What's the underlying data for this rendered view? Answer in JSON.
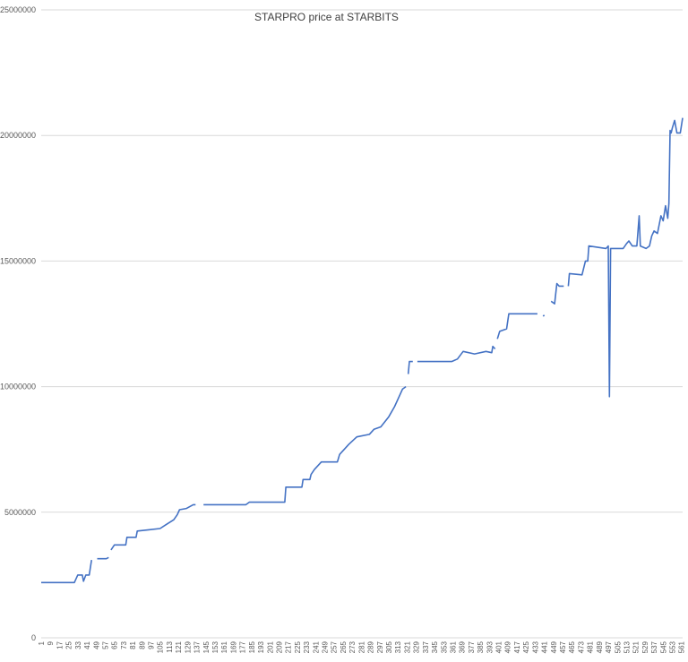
{
  "chart_data": {
    "type": "line",
    "title": "STARPRO price at STARBITS",
    "xlabel": "",
    "ylabel": "",
    "xlim": [
      1,
      562
    ],
    "ylim": [
      0,
      25000000
    ],
    "yticks": [
      0,
      5000000,
      10000000,
      15000000,
      20000000,
      25000000
    ],
    "xticks": [
      1,
      9,
      17,
      25,
      33,
      41,
      49,
      57,
      65,
      73,
      81,
      89,
      97,
      105,
      113,
      121,
      129,
      137,
      145,
      153,
      161,
      169,
      177,
      185,
      193,
      201,
      209,
      217,
      225,
      233,
      241,
      249,
      257,
      265,
      273,
      281,
      289,
      297,
      305,
      313,
      321,
      329,
      337,
      345,
      353,
      361,
      369,
      377,
      385,
      393,
      401,
      409,
      417,
      425,
      433,
      441,
      449,
      457,
      465,
      473,
      481,
      489,
      497,
      505,
      513,
      521,
      529,
      537,
      545,
      553,
      561
    ],
    "grid": "horizontal",
    "color": "#4472c4",
    "series": [
      {
        "name": "",
        "points": [
          [
            1,
            2200000
          ],
          [
            30,
            2200000
          ],
          [
            33,
            2500000
          ],
          [
            37,
            2500000
          ],
          [
            38,
            2250000
          ],
          [
            40,
            2500000
          ],
          [
            43,
            2500000
          ],
          [
            45,
            3100000
          ],
          null,
          [
            50,
            3150000
          ],
          [
            58,
            3150000
          ],
          [
            60,
            3200000
          ],
          null,
          [
            62,
            3500000
          ],
          [
            65,
            3700000
          ],
          [
            75,
            3700000
          ],
          [
            76,
            4000000
          ],
          [
            84,
            4000000
          ],
          [
            85,
            4250000
          ],
          [
            95,
            4300000
          ],
          [
            105,
            4350000
          ],
          [
            110,
            4500000
          ],
          [
            117,
            4700000
          ],
          [
            120,
            4900000
          ],
          [
            122,
            5100000
          ],
          [
            128,
            5150000
          ],
          [
            134,
            5300000
          ],
          [
            136,
            5300000
          ],
          null,
          [
            143,
            5300000
          ],
          [
            180,
            5300000
          ],
          [
            183,
            5400000
          ],
          [
            214,
            5400000
          ],
          [
            215,
            6000000
          ],
          [
            229,
            6000000
          ],
          [
            230,
            6300000
          ],
          [
            236,
            6300000
          ],
          [
            237,
            6500000
          ],
          [
            240,
            6700000
          ],
          [
            246,
            7000000
          ],
          [
            260,
            7000000
          ],
          [
            262,
            7300000
          ],
          [
            266,
            7500000
          ],
          [
            270,
            7700000
          ],
          [
            277,
            8000000
          ],
          [
            288,
            8100000
          ],
          [
            292,
            8300000
          ],
          [
            298,
            8400000
          ],
          [
            305,
            8800000
          ],
          [
            310,
            9200000
          ],
          [
            314,
            9600000
          ],
          [
            317,
            9900000
          ],
          [
            320,
            10000000
          ],
          null,
          [
            322,
            10500000
          ],
          [
            323,
            11000000
          ],
          [
            326,
            11000000
          ],
          null,
          [
            330,
            11000000
          ],
          [
            360,
            11000000
          ],
          [
            365,
            11100000
          ],
          [
            370,
            11400000
          ],
          [
            380,
            11300000
          ],
          [
            390,
            11400000
          ],
          [
            395,
            11350000
          ],
          [
            396,
            11600000
          ],
          [
            398,
            11500000
          ],
          null,
          [
            400,
            11900000
          ],
          [
            402,
            12200000
          ],
          [
            408,
            12300000
          ],
          [
            410,
            12900000
          ],
          [
            425,
            12900000
          ],
          [
            435,
            12900000
          ],
          null,
          [
            440,
            12800000
          ],
          [
            441,
            12850000
          ],
          null,
          [
            447,
            13400000
          ],
          [
            450,
            13300000
          ],
          [
            452,
            14100000
          ],
          [
            454,
            14000000
          ],
          [
            458,
            14000000
          ],
          null,
          [
            462,
            14000000
          ],
          [
            463,
            14500000
          ],
          [
            474,
            14450000
          ],
          [
            477,
            15000000
          ],
          [
            479,
            15000000
          ],
          [
            480,
            15600000
          ],
          [
            495,
            15500000
          ],
          [
            497,
            15600000
          ],
          [
            498,
            9600000
          ],
          [
            499,
            15500000
          ],
          [
            510,
            15500000
          ],
          [
            513,
            15700000
          ],
          [
            515,
            15800000
          ],
          [
            518,
            15600000
          ],
          [
            522,
            15600000
          ],
          [
            524,
            16800000
          ],
          [
            525,
            15600000
          ],
          [
            530,
            15500000
          ],
          [
            533,
            15600000
          ],
          [
            535,
            16000000
          ],
          [
            537,
            16200000
          ],
          [
            540,
            16100000
          ],
          [
            543,
            16800000
          ],
          [
            545,
            16600000
          ],
          [
            547,
            17200000
          ],
          [
            549,
            16700000
          ],
          [
            550,
            17300000
          ],
          [
            551,
            20200000
          ],
          [
            552,
            20100000
          ],
          [
            553,
            20300000
          ],
          [
            555,
            20600000
          ],
          [
            557,
            20100000
          ],
          [
            560,
            20100000
          ],
          [
            562,
            20700000
          ]
        ]
      }
    ]
  }
}
